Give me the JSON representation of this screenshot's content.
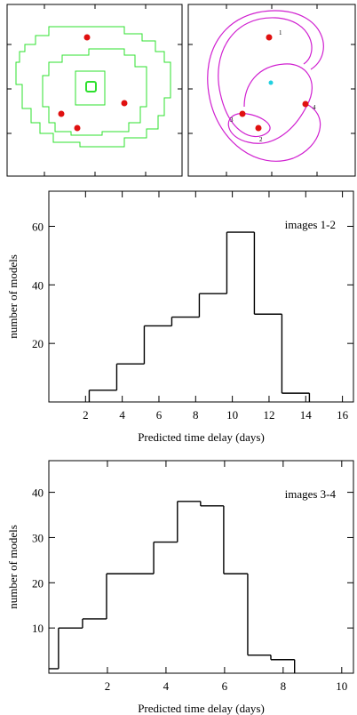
{
  "lens_panel": {
    "image_labels": [
      "1",
      "2",
      "3",
      "4"
    ]
  },
  "chart_data": [
    {
      "type": "histogram",
      "annotation": "images 1-2",
      "xlabel": "Predicted time delay (days)",
      "ylabel": "number of models",
      "bins": [
        2.2,
        3.7,
        5.2,
        6.7,
        8.2,
        9.7,
        11.2,
        12.7,
        14.2
      ],
      "counts": [
        4,
        13,
        26,
        29,
        37,
        58,
        30,
        3
      ],
      "color": "#000000",
      "xlim": [
        0,
        16.6
      ],
      "xticks": [
        2,
        4,
        6,
        8,
        10,
        12,
        14,
        16
      ],
      "ylim": [
        0,
        72
      ],
      "yticks": [
        20,
        40,
        60
      ]
    },
    {
      "type": "histogram",
      "annotation": "images 3-4",
      "xlabel": "Predicted time delay (days)",
      "ylabel": "number of models",
      "bins": [
        -0.48,
        0.33,
        1.15,
        1.97,
        2.79,
        3.58,
        4.39,
        5.18,
        5.97,
        6.79,
        7.58,
        8.39
      ],
      "counts": [
        1,
        10,
        12,
        22,
        22,
        29,
        38,
        37,
        22,
        4,
        3
      ],
      "color": "#000000",
      "xlim": [
        0,
        10.4
      ],
      "xticks": [
        2,
        4,
        6,
        8,
        10
      ],
      "ylim": [
        0,
        47
      ],
      "yticks": [
        10,
        20,
        30,
        40
      ]
    }
  ]
}
